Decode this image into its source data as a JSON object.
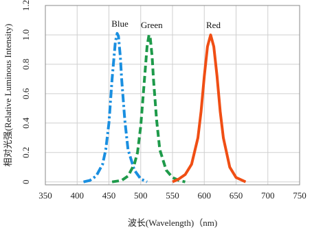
{
  "chart_data": {
    "type": "line",
    "xlabel": "波长(Wavelength)（nm)",
    "ylabel": "相对光强(Relative Luminous Intensity)",
    "xlim": [
      350,
      750
    ],
    "ylim": [
      -0.02,
      1.2
    ],
    "x_ticks": [
      "350",
      "400",
      "450",
      "500",
      "550",
      "600",
      "650",
      "700",
      "750"
    ],
    "y_ticks": [
      "0",
      "0.2",
      "0.4",
      "0.6",
      "0.8",
      "1.0",
      "1.2"
    ],
    "grid": true,
    "series": [
      {
        "name": "Blue",
        "color": "#1a8fe0",
        "style": "dashdot",
        "x": [
          410,
          420,
          430,
          440,
          445,
          450,
          455,
          460,
          463,
          465,
          468,
          470,
          475,
          480,
          490,
          500,
          510
        ],
        "y": [
          0.0,
          0.01,
          0.04,
          0.12,
          0.22,
          0.4,
          0.7,
          0.95,
          1.01,
          0.99,
          0.85,
          0.7,
          0.42,
          0.22,
          0.08,
          0.02,
          0.0
        ]
      },
      {
        "name": "Green",
        "color": "#1e9a4a",
        "style": "dashed",
        "x": [
          455,
          470,
          480,
          490,
          495,
          500,
          505,
          510,
          513,
          515,
          518,
          520,
          525,
          530,
          540,
          550,
          560,
          570
        ],
        "y": [
          0.0,
          0.01,
          0.04,
          0.12,
          0.2,
          0.38,
          0.65,
          0.92,
          1.0,
          0.98,
          0.85,
          0.7,
          0.42,
          0.22,
          0.08,
          0.03,
          0.01,
          0.0
        ]
      },
      {
        "name": "Red",
        "color": "#f04e14",
        "style": "solid",
        "x": [
          550,
          560,
          570,
          580,
          590,
          595,
          600,
          605,
          610,
          615,
          620,
          625,
          630,
          640,
          650,
          660,
          665
        ],
        "y": [
          0.0,
          0.02,
          0.05,
          0.12,
          0.3,
          0.48,
          0.72,
          0.92,
          1.0,
          0.92,
          0.72,
          0.48,
          0.3,
          0.1,
          0.03,
          0.01,
          0.0
        ]
      }
    ]
  }
}
